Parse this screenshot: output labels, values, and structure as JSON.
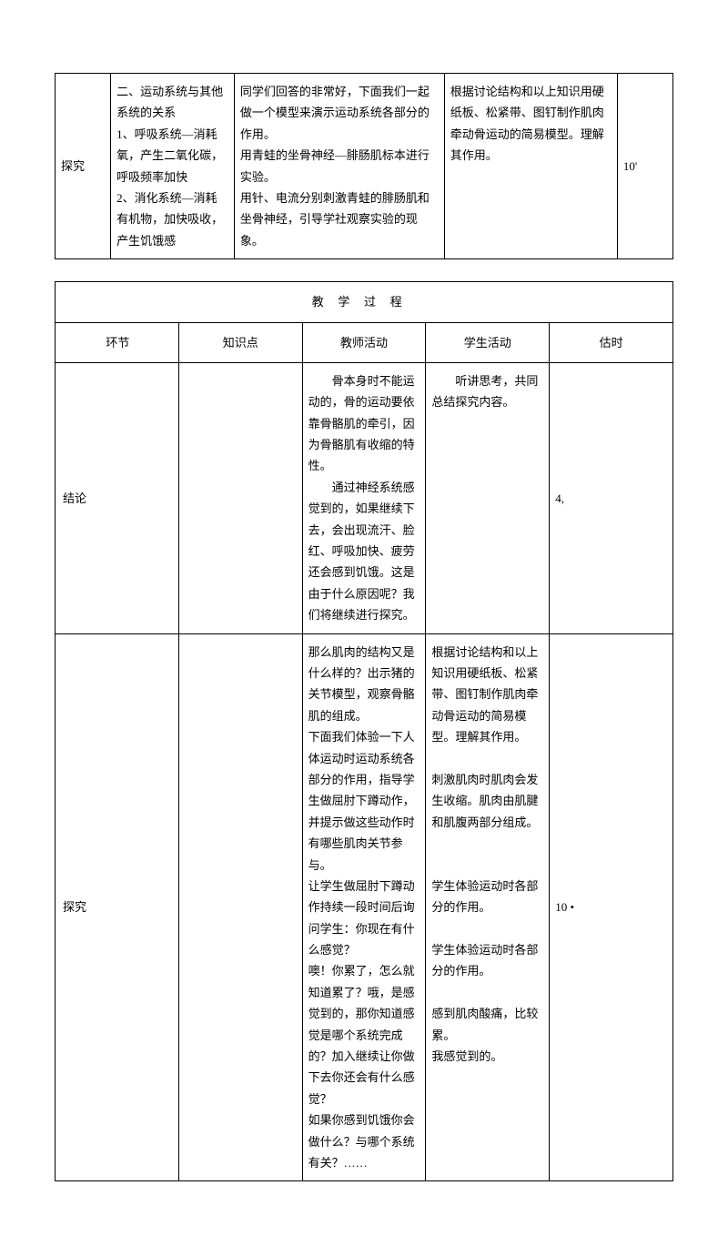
{
  "table1": {
    "row": {
      "phase": "探究",
      "knowledge": "二、运动系统与其他系统的关系\n1、呼吸系统—消耗氧，产生二氧化碳，呼吸频率加快\n2、消化系统—消耗有机物，加快吸收，产生饥饿感",
      "teacher": "同学们回答的非常好，下面我们一起做一个模型来演示运动系统各部分的作用。\n用青蛙的坐骨神经—腓肠肌标本进行实验。\n用针、电流分别刺激青蛙的腓肠肌和坐骨神经，引导学社观察实验的现象。",
      "student": "根据讨论结构和以上知识用硬纸板、松紧带、图钉制作肌肉牵动骨运动的简易模型。理解其作用。",
      "time": "10'"
    }
  },
  "table2": {
    "header": "教学过程",
    "labels": {
      "c1": "环节",
      "c2": "知识点",
      "c3": "教师活动",
      "c4": "学生活动",
      "c5": "估时"
    },
    "rows": [
      {
        "phase": "结论",
        "knowledge": "",
        "teacher_p1": "骨本身时不能运动的，骨的运动要依靠骨骼肌的牵引，因为骨骼肌有收缩的特性。",
        "teacher_p2": "通过神经系统感觉到的，如果继续下去，会出现流汗、脸红、呼吸加快、疲劳还会感到饥饿。这是由于什么原因呢？我们将继续进行探究。",
        "student_p1": "听讲思考，共同总结探究内容。",
        "time": "4,"
      },
      {
        "phase": "探究",
        "knowledge": "",
        "teacher": "那么肌肉的结构又是什么样的？出示猪的关节模型，观察骨骼肌的组成。\n下面我们体验一下人体运动时运动系统各部分的作用，指导学生做屈肘下蹲动作，并提示做这些动作时有哪些肌肉关节参与。\n让学生做屈肘下蹲动作持续一段时间后询问学生：你现在有什么感觉？\n噢！你累了，怎么就知道累了？哦，是感觉到的，那你知道感觉是哪个系统完成的？加入继续让你做下去你还会有什么感觉？\n如果你感到饥饿你会做什么？与哪个系统有关？……",
        "student": "根据讨论结构和以上知识用硬纸板、松紧带、图钉制作肌肉牵动骨运动的简易模型。理解其作用。\n\n刺激肌肉时肌肉会发生收缩。肌肉由肌腱和肌腹两部分组成。\n\n\n学生体验运动时各部分的作用。\n\n学生体验运动时各部分的作用。\n\n感到肌肉酸痛，比较累。\n我感觉到的。",
        "time": "10 •"
      }
    ]
  }
}
